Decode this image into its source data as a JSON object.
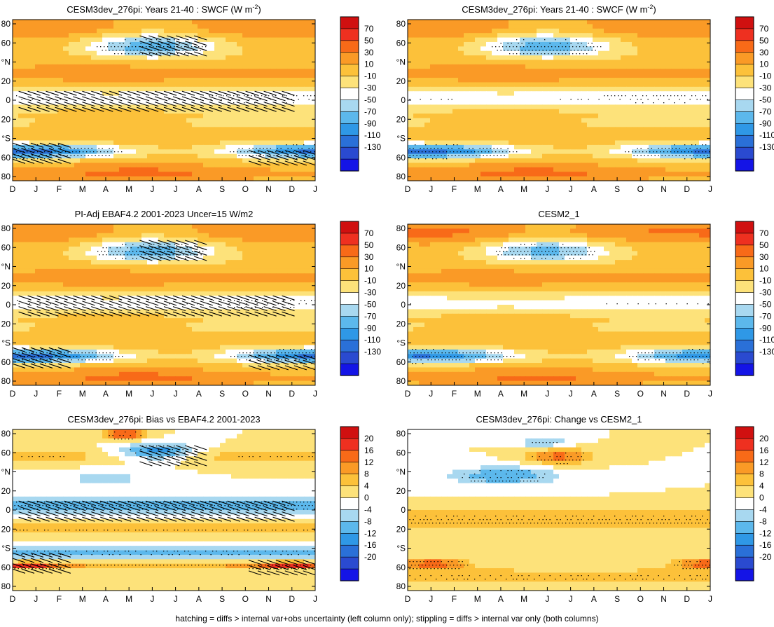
{
  "figure": {
    "caption": "hatching = diffs > internal var+obs uncertainty (left column only); stippling = diffs > internal var only (both columns)"
  },
  "chart_data": [
    {
      "type": "heatmap",
      "title": "CESM3dev_276pi: Years 21-40 : SWCF (W m",
      "title_sup": "-2",
      "title_tail": ")",
      "x_ticks": [
        "D",
        "J",
        "F",
        "M",
        "A",
        "M",
        "J",
        "J",
        "A",
        "S",
        "O",
        "N",
        "D",
        "J"
      ],
      "y_ticks": [
        "80",
        "60",
        "°N",
        "20",
        "0",
        "20",
        "°S",
        "60",
        "80"
      ],
      "colorbar": {
        "labels": [
          "70",
          "50",
          "30",
          "10",
          "-10",
          "-30",
          "-50",
          "-70",
          "-90",
          "-110",
          "-130"
        ],
        "colors": [
          "#d01010",
          "#ee3020",
          "#f86a18",
          "#fa9a26",
          "#fcc13a",
          "#fde27a",
          "#ffffff",
          "#a8d8f0",
          "#5cb8ec",
          "#2f98e6",
          "#2a70d8",
          "#2a4ad0",
          "#1414e6"
        ]
      },
      "field": "swcf",
      "hatching": true,
      "stippling": true
    },
    {
      "type": "heatmap",
      "title": "CESM3dev_276pi: Years 21-40 : SWCF (W m",
      "title_sup": "-2",
      "title_tail": ")",
      "x_ticks": [
        "D",
        "J",
        "F",
        "M",
        "A",
        "M",
        "J",
        "J",
        "A",
        "S",
        "O",
        "N",
        "D",
        "J"
      ],
      "y_ticks": [
        "80",
        "60",
        "°N",
        "20",
        "0",
        "20",
        "°S",
        "60",
        "80"
      ],
      "colorbar": {
        "labels": [
          "70",
          "50",
          "30",
          "10",
          "-10",
          "-30",
          "-50",
          "-70",
          "-90",
          "-110",
          "-130"
        ],
        "colors": [
          "#d01010",
          "#ee3020",
          "#f86a18",
          "#fa9a26",
          "#fcc13a",
          "#fde27a",
          "#ffffff",
          "#a8d8f0",
          "#5cb8ec",
          "#2f98e6",
          "#2a70d8",
          "#2a4ad0",
          "#1414e6"
        ]
      },
      "field": "swcf",
      "hatching": false,
      "stippling": true
    },
    {
      "type": "heatmap",
      "title": "PI-Adj EBAF4.2 2001-2023 Uncer=15 W/m2",
      "title_sup": "",
      "title_tail": "",
      "x_ticks": [
        "D",
        "J",
        "F",
        "M",
        "A",
        "M",
        "J",
        "J",
        "A",
        "S",
        "O",
        "N",
        "D",
        "J"
      ],
      "y_ticks": [
        "80",
        "60",
        "°N",
        "20",
        "0",
        "20",
        "°S",
        "60",
        "80"
      ],
      "colorbar": {
        "labels": [
          "70",
          "50",
          "30",
          "10",
          "-10",
          "-30",
          "-50",
          "-70",
          "-90",
          "-110",
          "-130"
        ],
        "colors": [
          "#d01010",
          "#ee3020",
          "#f86a18",
          "#fa9a26",
          "#fcc13a",
          "#fde27a",
          "#ffffff",
          "#a8d8f0",
          "#5cb8ec",
          "#2f98e6",
          "#2a70d8",
          "#2a4ad0",
          "#1414e6"
        ]
      },
      "field": "swcf",
      "hatching": true,
      "stippling": true
    },
    {
      "type": "heatmap",
      "title": "CESM2_1",
      "title_sup": "",
      "title_tail": "",
      "x_ticks": [
        "D",
        "J",
        "F",
        "M",
        "A",
        "M",
        "J",
        "J",
        "A",
        "S",
        "O",
        "N",
        "D",
        "J"
      ],
      "y_ticks": [
        "80",
        "60",
        "°N",
        "20",
        "0",
        "20",
        "°S",
        "60",
        "80"
      ],
      "colorbar": {
        "labels": [
          "70",
          "50",
          "30",
          "10",
          "-10",
          "-30",
          "-50",
          "-70",
          "-90",
          "-110",
          "-130"
        ],
        "colors": [
          "#d01010",
          "#ee3020",
          "#f86a18",
          "#fa9a26",
          "#fcc13a",
          "#fde27a",
          "#ffffff",
          "#a8d8f0",
          "#5cb8ec",
          "#2f98e6",
          "#2a70d8",
          "#2a4ad0",
          "#1414e6"
        ]
      },
      "field": "swcf2",
      "hatching": false,
      "stippling": true
    },
    {
      "type": "heatmap",
      "title": "CESM3dev_276pi: Bias vs EBAF4.2 2001-2023",
      "title_sup": "",
      "title_tail": "",
      "x_ticks": [
        "D",
        "J",
        "F",
        "M",
        "A",
        "M",
        "J",
        "J",
        "A",
        "S",
        "O",
        "N",
        "D",
        "J"
      ],
      "y_ticks": [
        "80",
        "60",
        "°N",
        "20",
        "0",
        "20",
        "°S",
        "60",
        "80"
      ],
      "colorbar": {
        "labels": [
          "20",
          "16",
          "12",
          "8",
          "4",
          "0",
          "-4",
          "-8",
          "-12",
          "-16",
          "-20"
        ],
        "colors": [
          "#d01010",
          "#ee3020",
          "#f86a18",
          "#fa9a26",
          "#fcc13a",
          "#fde27a",
          "#ffffff",
          "#a8d8f0",
          "#5cb8ec",
          "#2f98e6",
          "#2a70d8",
          "#2a4ad0",
          "#1414e6"
        ]
      },
      "field": "bias",
      "hatching": true,
      "stippling": true
    },
    {
      "type": "heatmap",
      "title": "CESM3dev_276pi: Change vs CESM2_1",
      "title_sup": "",
      "title_tail": "",
      "x_ticks": [
        "D",
        "J",
        "F",
        "M",
        "A",
        "M",
        "J",
        "J",
        "A",
        "S",
        "O",
        "N",
        "D",
        "J"
      ],
      "y_ticks": [
        "80",
        "60",
        "°N",
        "20",
        "0",
        "20",
        "°S",
        "60",
        "80"
      ],
      "colorbar": {
        "labels": [
          "20",
          "16",
          "12",
          "8",
          "4",
          "0",
          "-4",
          "-8",
          "-12",
          "-16",
          "-20"
        ],
        "colors": [
          "#d01010",
          "#ee3020",
          "#f86a18",
          "#fa9a26",
          "#fcc13a",
          "#fde27a",
          "#ffffff",
          "#a8d8f0",
          "#5cb8ec",
          "#2f98e6",
          "#2a70d8",
          "#2a4ad0",
          "#1414e6"
        ]
      },
      "field": "change",
      "hatching": false,
      "stippling": true
    }
  ]
}
